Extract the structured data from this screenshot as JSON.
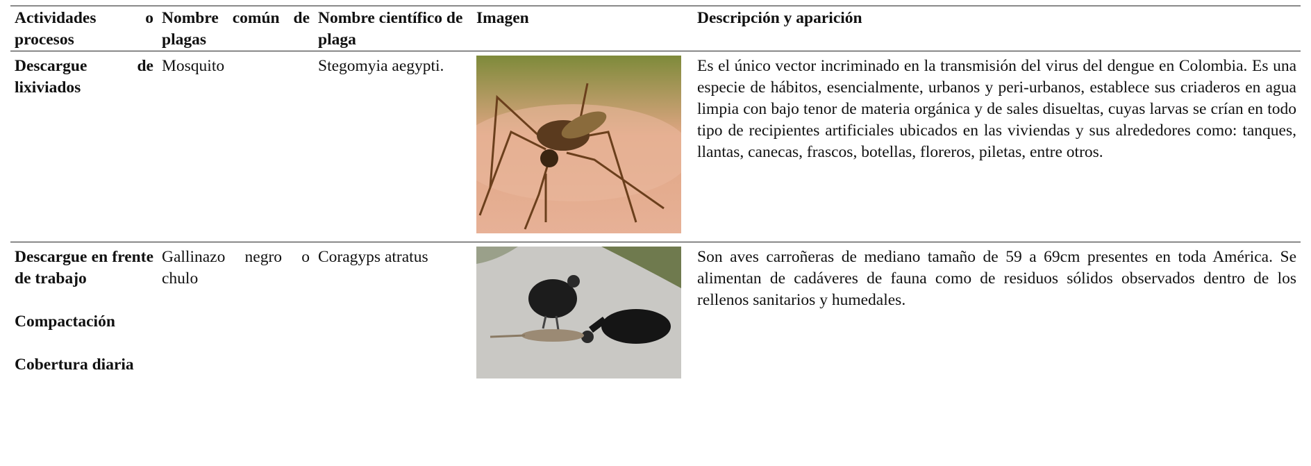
{
  "table": {
    "header": [
      "Actividades o procesos",
      "Nombre común de plagas",
      "Nombre científico de plaga",
      "Imagen",
      "Descripción y aparición"
    ],
    "rows": [
      {
        "activities": [
          "Descargue de lixiviados"
        ],
        "common_name": "Mosquito",
        "scientific_name": "Stegomyia aegypti.",
        "description": "Es el único vector incriminado en la transmisión del virus del dengue en Colombia. Es una especie de hábitos, esencialmente, urbanos y peri-urbanos, establece sus criaderos en agua limpia con bajo tenor de materia orgánica y de sales disueltas, cuyas larvas se crían en todo tipo de recipientes artificiales ubicados en las viviendas y sus alrededores como: tanques, llantas, canecas, frascos, botellas, floreros, piletas, entre otros."
      },
      {
        "activities": [
          "Descargue en frente de trabajo",
          "Compactación",
          "Cobertura diaria"
        ],
        "common_name": "Gallinazo negro o chulo",
        "scientific_name": "Coragyps atratus",
        "description": "Son aves carroñeras de mediano tamaño de 59 a 69cm presentes en toda América. Se alimentan de cadáveres de fauna como de residuos sólidos observados dentro de los rellenos sanitarios y humedales."
      }
    ]
  }
}
